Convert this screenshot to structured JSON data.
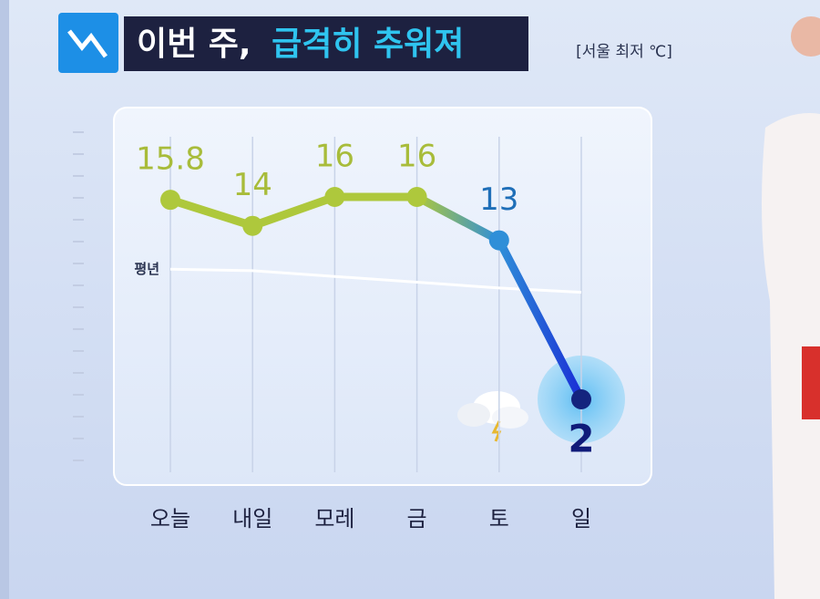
{
  "chart_data": {
    "type": "line",
    "title": {
      "lead": "이번 주,",
      "highlight": "급격히 추워져"
    },
    "subtitle": "[서울 최저 ℃]",
    "categories": [
      "오늘",
      "내일",
      "모레",
      "금",
      "토",
      "일"
    ],
    "values": [
      15.8,
      14,
      16,
      16,
      13,
      2
    ],
    "point_colors": [
      "#aec83c",
      "#aec83c",
      "#aec83c",
      "#aec83c",
      "#2f8fd8",
      "#1a2fd6"
    ],
    "normal": {
      "label": "평년",
      "values": [
        11,
        10.9,
        10.5,
        10.1,
        9.7,
        9.4
      ],
      "color": "#ffffff"
    }
  }
}
